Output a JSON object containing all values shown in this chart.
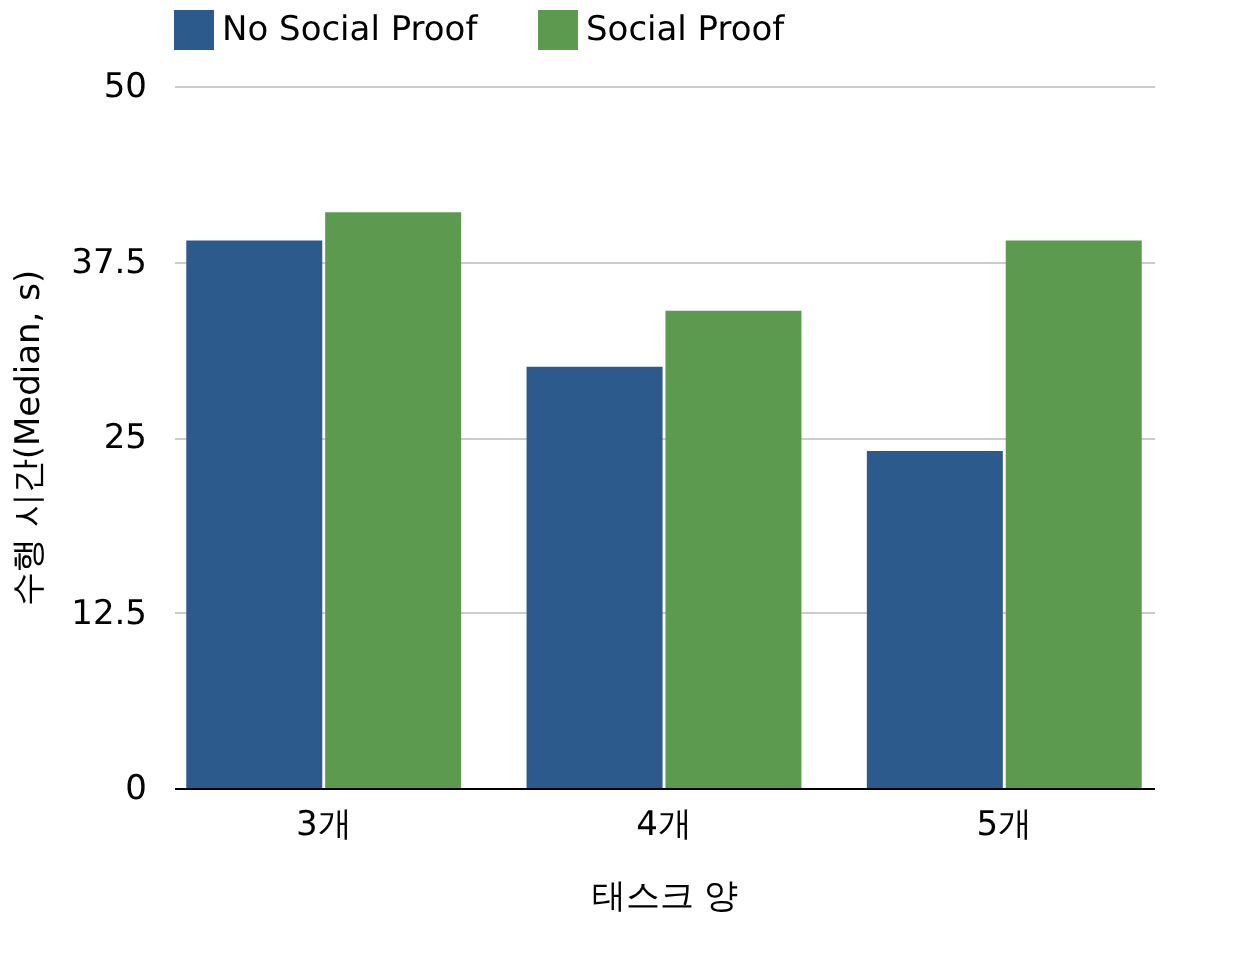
{
  "chart_data": {
    "type": "bar",
    "categories": [
      "3개",
      "4개",
      "5개"
    ],
    "xlabel": "태스크 양",
    "ylabel": "수행 시간(Median, s)",
    "series": [
      {
        "name": "No Social Proof",
        "color": "#2c5a8d",
        "values": [
          39,
          30,
          24
        ]
      },
      {
        "name": "Social Proof",
        "color": "#5b9a4f",
        "values": [
          41,
          34,
          39
        ]
      }
    ],
    "ylim": [
      0,
      50
    ],
    "yticks": [
      0,
      12.5,
      25,
      37.5,
      50
    ],
    "grid": "y",
    "legend": "top"
  }
}
